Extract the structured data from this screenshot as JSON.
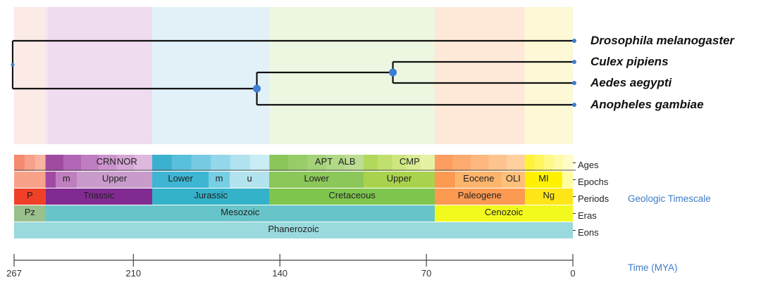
{
  "tree": {
    "species": [
      {
        "name": "Drosophila melanogaster"
      },
      {
        "name": "Culex pipiens"
      },
      {
        "name": "Aedes aegypti"
      },
      {
        "name": "Anopheles gambiae"
      }
    ],
    "nodes": [
      {
        "id": "root",
        "age_mya": 267
      },
      {
        "id": "culicidae",
        "age_mya": 151
      },
      {
        "id": "culicinae",
        "age_mya": 86
      }
    ]
  },
  "timescale": {
    "title": "Geologic Timescale",
    "rows": {
      "ages": "Ages",
      "epochs": "Epochs",
      "periods": "Periods",
      "eras": "Eras",
      "eons": "Eons"
    },
    "age_labels": [
      {
        "text": "CRN",
        "at": 223
      },
      {
        "text": "NOR",
        "at": 213
      },
      {
        "text": "APT",
        "at": 119
      },
      {
        "text": "ALB",
        "at": 108
      },
      {
        "text": "CMP",
        "at": 78
      }
    ],
    "epochs": [
      {
        "text": "m",
        "start": 247,
        "end": 237,
        "color": "#bf7fbf"
      },
      {
        "text": "Upper",
        "start": 237,
        "end": 201,
        "color": "#c99bcb"
      },
      {
        "text": "Lower",
        "start": 201,
        "end": 174,
        "color": "#3eb5d3"
      },
      {
        "text": "m",
        "start": 174,
        "end": 164,
        "color": "#76cfe4"
      },
      {
        "text": "u",
        "start": 164,
        "end": 145,
        "color": "#b3e3ee"
      },
      {
        "text": "Lower",
        "start": 145,
        "end": 100,
        "color": "#8cc75a"
      },
      {
        "text": "Upper",
        "start": 100,
        "end": 66,
        "color": "#a9d34e"
      },
      {
        "text": "Eocene",
        "start": 56,
        "end": 34,
        "color": "#fdb46c"
      },
      {
        "text": "OLI",
        "start": 34,
        "end": 23,
        "color": "#fec07a"
      },
      {
        "text": "MI",
        "start": 23,
        "end": 5,
        "color": "#fff200"
      }
    ],
    "periods": [
      {
        "text": "P",
        "start": 267,
        "end": 252,
        "color": "#f04028"
      },
      {
        "text": "Triassic",
        "start": 252,
        "end": 201,
        "color": "#812b92"
      },
      {
        "text": "Jurassic",
        "start": 201,
        "end": 145,
        "color": "#34b2c9"
      },
      {
        "text": "Cretaceous",
        "start": 145,
        "end": 66,
        "color": "#7fc64e"
      },
      {
        "text": "Paleogene",
        "start": 66,
        "end": 23,
        "color": "#fd9a52"
      },
      {
        "text": "Ng",
        "start": 23,
        "end": 0,
        "color": "#ffe619"
      }
    ],
    "eras": [
      {
        "text": "Pz",
        "start": 267,
        "end": 252,
        "color": "#99c08d"
      },
      {
        "text": "Mesozoic",
        "start": 252,
        "end": 66,
        "color": "#67c5ca"
      },
      {
        "text": "Cenozoic",
        "start": 66,
        "end": 0,
        "color": "#f2f91d"
      }
    ],
    "eons": [
      {
        "text": "Phanerozoic",
        "start": 267,
        "end": 0,
        "color": "#9ad9dd"
      }
    ]
  },
  "axis": {
    "title": "Time (MYA)",
    "ticks": [
      267,
      210,
      140,
      70,
      0
    ]
  }
}
